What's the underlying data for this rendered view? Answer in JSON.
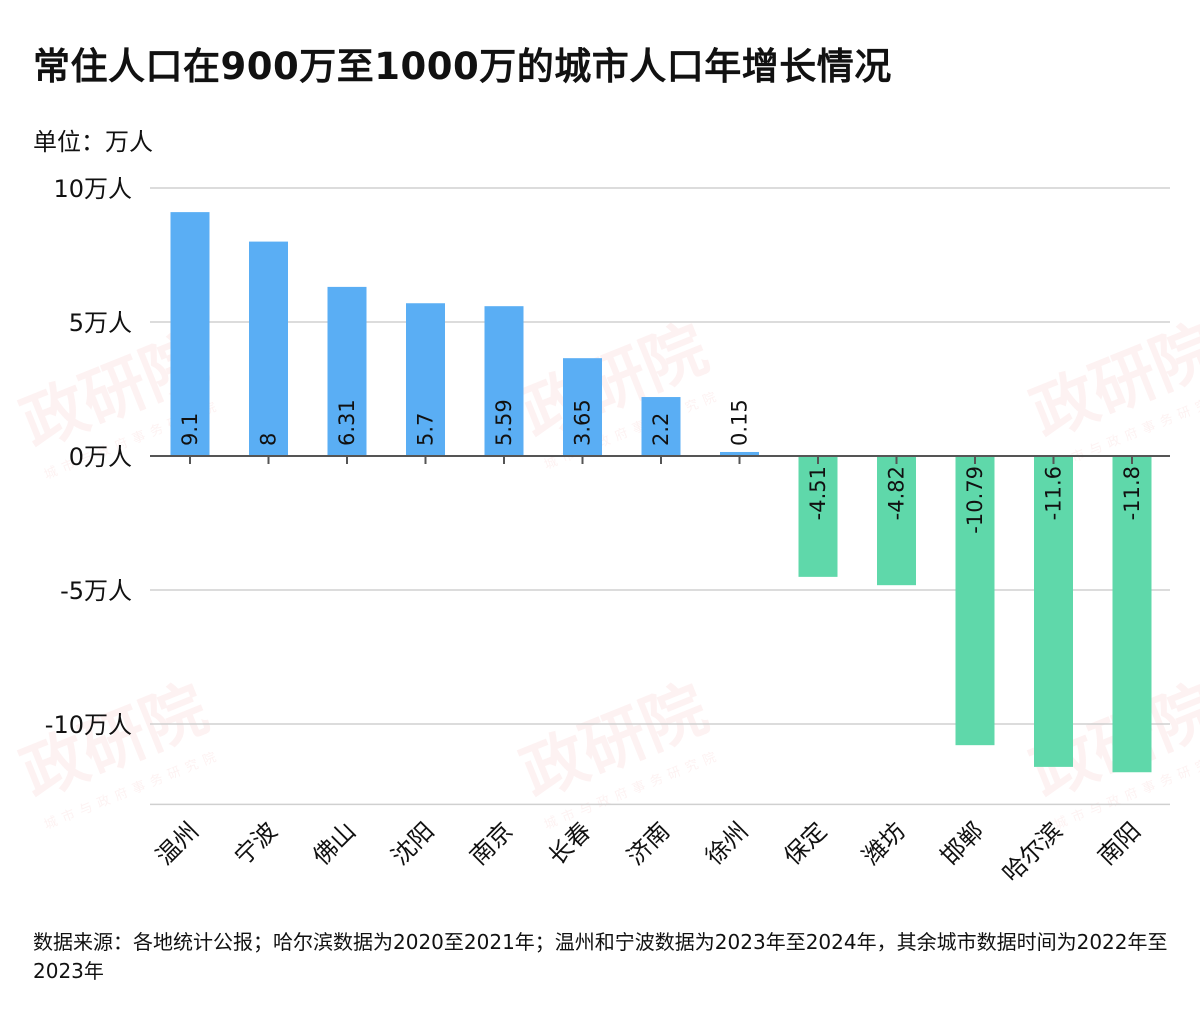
{
  "title": "常住人口在900万至1000万的城市人口年增长情况",
  "unit_label": "单位：万人",
  "source_note": "数据来源：各地统计公报；哈尔滨数据为2020至2021年；温州和宁波数据为2023年至2024年，其余城市数据时间为2022年至2023年",
  "watermark": {
    "name": "政研院",
    "sub": "城市与政府事务研究院"
  },
  "colors": {
    "positive": "#5aaef4",
    "negative": "#5fd8aa",
    "grid": "#d0d0d0",
    "axis": "#555555",
    "text": "#111111"
  },
  "chart_data": {
    "type": "bar",
    "title": "常住人口在900万至1000万的城市人口年增长情况",
    "ylabel": "单位：万人",
    "ylim": [
      -13,
      10
    ],
    "yticks": [
      10,
      5,
      0,
      -5,
      -10
    ],
    "ytick_labels": [
      "10万人",
      "5万人",
      "0万人",
      "-5万人",
      "-10万人"
    ],
    "grid": true,
    "categories": [
      "温州",
      "宁波",
      "佛山",
      "沈阳",
      "南京",
      "长春",
      "济南",
      "徐州",
      "保定",
      "潍坊",
      "邯郸",
      "哈尔滨",
      "南阳"
    ],
    "values": [
      9.1,
      8,
      6.31,
      5.7,
      5.59,
      3.65,
      2.2,
      0.15,
      -4.51,
      -4.82,
      -10.79,
      -11.6,
      -11.8
    ],
    "value_labels": [
      "9.1",
      "8",
      "6.31",
      "5.7",
      "5.59",
      "3.65",
      "2.2",
      "0.15",
      "-4.51",
      "-4.82",
      "-10.79",
      "-11.6",
      "-11.8"
    ]
  }
}
